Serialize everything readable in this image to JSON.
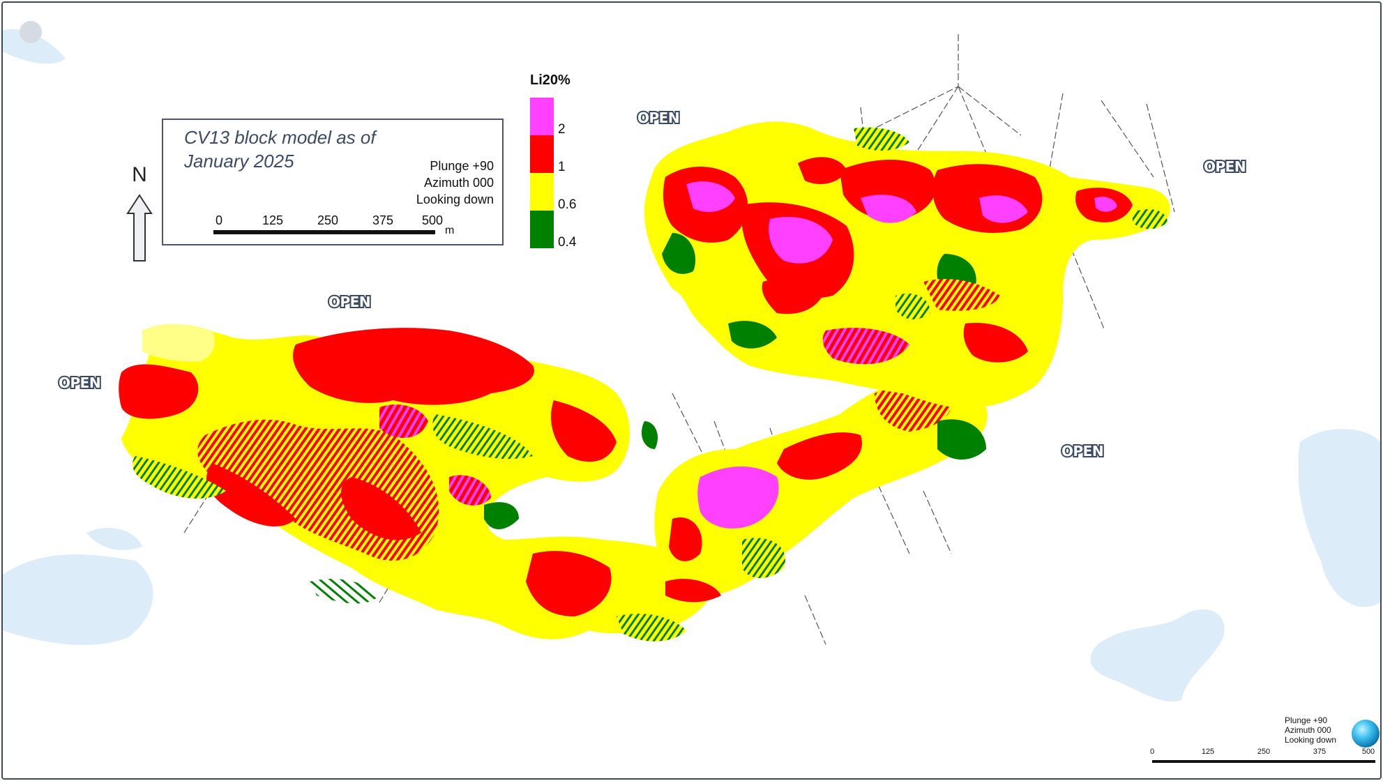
{
  "map": {
    "title_line1": "CV13 block model as of",
    "title_line2": "January 2025",
    "view": {
      "plunge": "Plunge +90",
      "azimuth": "Azimuth 000",
      "looking": "Looking down"
    },
    "scale_bar": {
      "ticks": [
        "0",
        "125",
        "250",
        "375",
        "500"
      ],
      "unit": "m"
    },
    "north_label": "N",
    "open_labels": [
      "OPEN",
      "OPEN",
      "OPEN",
      "OPEN",
      "OPEN"
    ],
    "legend": {
      "title": "Li20%",
      "classes": [
        {
          "label": "2",
          "color": "#ff40ff"
        },
        {
          "label": "1",
          "color": "#ff0000"
        },
        {
          "label": "0.6",
          "color": "#ffff00"
        },
        {
          "label": "0.4",
          "color": "#008000"
        }
      ]
    },
    "compass": {
      "plunge": "Plunge +90",
      "azimuth": "Azimuth 000",
      "looking": "Looking down"
    },
    "bottom_scale": {
      "ticks": [
        "0",
        "125",
        "250",
        "375",
        "500"
      ]
    }
  }
}
